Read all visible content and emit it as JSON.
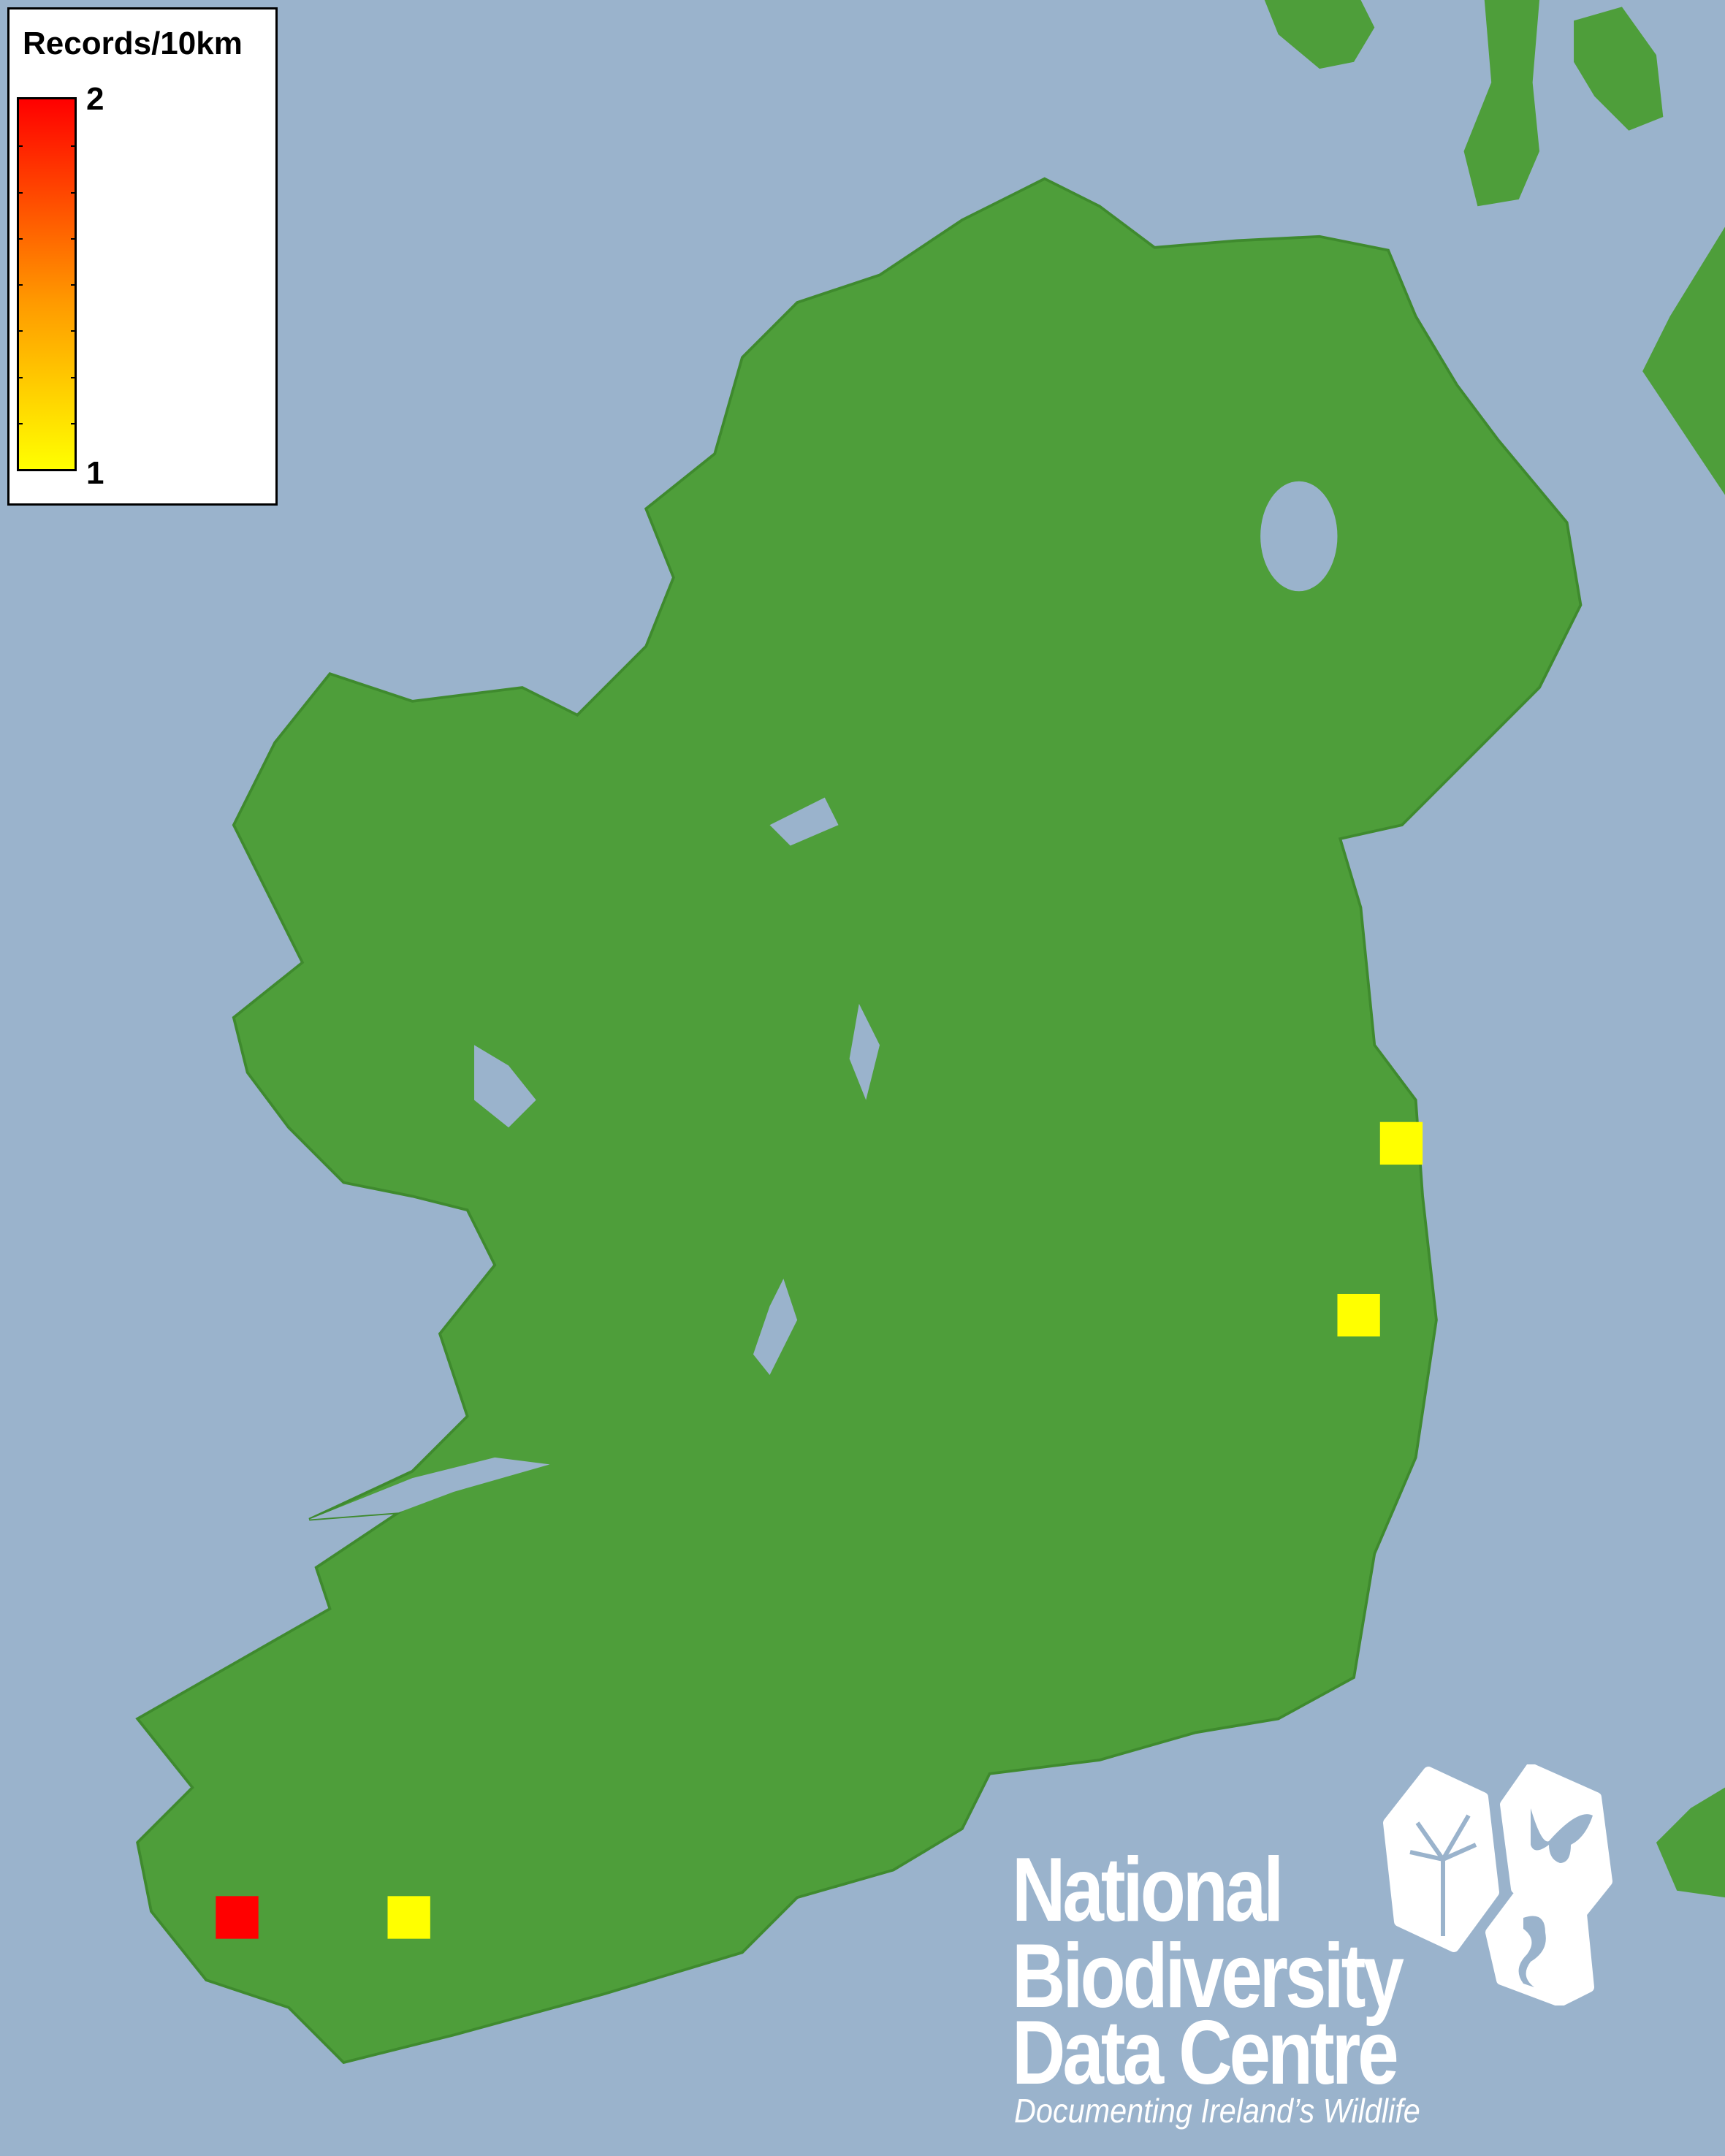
{
  "legend": {
    "title": "Records/10km",
    "max_label": "2",
    "min_label": "1",
    "min_color": "#ffff00",
    "max_color": "#ff0000"
  },
  "records": [
    {
      "value": 1
    },
    {
      "value": 1
    },
    {
      "value": 2
    },
    {
      "value": 1
    }
  ],
  "colors": {
    "sea": "#9ab3cc",
    "land": "#4e9e3a",
    "lake": "#9ab3cc"
  },
  "logo": {
    "line1": "National",
    "line2": "Biodiversity",
    "line3": "Data Centre",
    "tagline": "Documenting Ireland’s Wildlife",
    "icons": [
      "tree-icon",
      "butterfly-icon",
      "seahorse-icon"
    ]
  }
}
